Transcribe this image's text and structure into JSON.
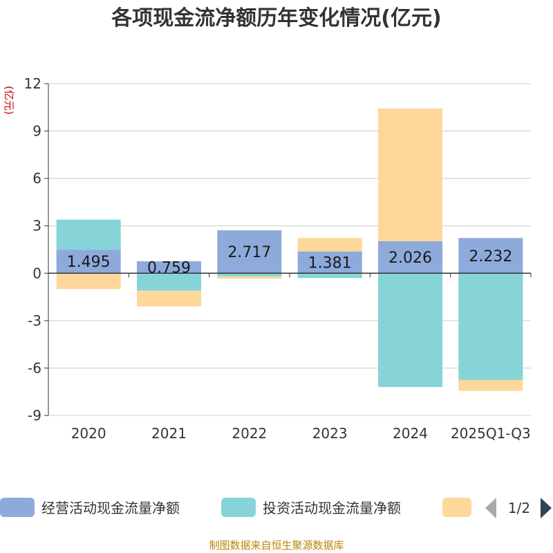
{
  "chart_data": {
    "type": "bar",
    "stacked": true,
    "title": "各项现金流净额历年变化情况(亿元)",
    "ylabel": "(亿元)",
    "ylim": [
      -9,
      12
    ],
    "yticks": [
      12,
      9,
      6,
      3,
      0,
      -3,
      -6,
      -9
    ],
    "categories": [
      "2020",
      "2021",
      "2022",
      "2023",
      "2024",
      "2025Q1-Q3"
    ],
    "series": [
      {
        "name": "经营活动现金流量净额",
        "color": "#8eaadb",
        "values": [
          1.495,
          0.759,
          2.717,
          1.381,
          2.026,
          2.232
        ]
      },
      {
        "name": "投资活动现金流量净额",
        "color": "#86d4d8",
        "values": [
          1.9,
          -1.1,
          -0.2,
          -0.3,
          -7.2,
          -6.75
        ]
      },
      {
        "name": "",
        "color": "#fdd89a",
        "values": [
          -1.0,
          -1.0,
          -0.15,
          0.85,
          8.4,
          -0.7
        ]
      }
    ],
    "data_labels": [
      "1.495",
      "0.759",
      "2.717",
      "1.381",
      "2.026",
      "2.232"
    ],
    "legend": {
      "position": "bottom",
      "page": "1/2"
    },
    "source": "制图数据来自恒生聚源数据库"
  }
}
